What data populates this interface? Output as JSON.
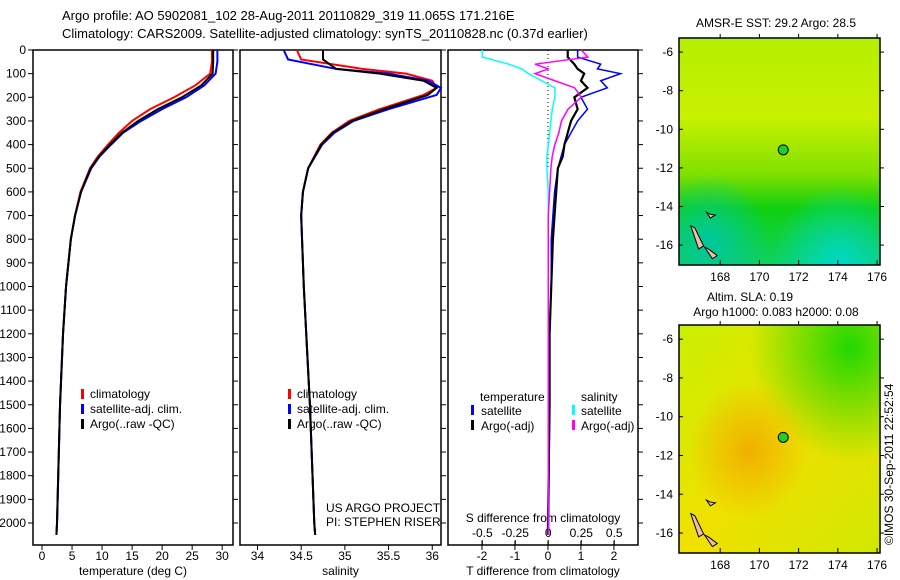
{
  "title": {
    "line1": "Argo profile: AO 5902081_102 28-Aug-2011 20110829_319 11.065S 171.216E",
    "line2": "Climatology: CARS2009. Satellite-adjusted climatology: synTS_20110828.nc (0.37d earlier)"
  },
  "credit": "©IMOS 30-Sep-2011 22:52:54",
  "project": {
    "line1": "US ARGO PROJECT",
    "line2": "PI: STEPHEN RISER"
  },
  "colors": {
    "climatology": "#ff0000",
    "satellite": "#0000ff",
    "argo": "#000000",
    "sal_satellite": "#00ffff",
    "sal_argo": "#ff00ff"
  },
  "chart_data": [
    {
      "type": "line",
      "id": "temperature",
      "xlabel": "temperature (deg C)",
      "ylabel": "",
      "xlim": [
        -1.5,
        31.8
      ],
      "ylim": [
        2093,
        0
      ],
      "xticks": [
        0,
        5,
        10,
        15,
        20,
        25,
        30
      ],
      "yticks": [
        0,
        100,
        200,
        300,
        400,
        500,
        600,
        700,
        800,
        900,
        1000,
        1100,
        1200,
        1300,
        1400,
        1500,
        1600,
        1700,
        1800,
        1900,
        2000
      ],
      "legend": [
        "climatology",
        "satellite-adj. clim.",
        "Argo(..raw -QC)"
      ],
      "depth": [
        0,
        50,
        100,
        150,
        200,
        250,
        300,
        350,
        400,
        450,
        500,
        600,
        700,
        800,
        1000,
        1200,
        1500,
        2000,
        2050
      ],
      "series": [
        {
          "name": "climatology",
          "color": "#ff0000",
          "values": [
            28.3,
            28.3,
            28.0,
            25.5,
            22.0,
            18.0,
            15.0,
            12.8,
            11.0,
            9.3,
            8.0,
            6.4,
            5.5,
            4.8,
            4.0,
            3.5,
            3.0,
            2.5,
            2.4
          ]
        },
        {
          "name": "satellite-adj. clim.",
          "color": "#0000ff",
          "values": [
            29.2,
            29.2,
            28.9,
            27.0,
            24.0,
            20.0,
            16.5,
            13.5,
            11.5,
            9.6,
            8.2,
            6.5,
            5.5,
            4.8,
            4.0,
            3.5,
            3.0,
            2.5,
            2.4
          ]
        },
        {
          "name": "Argo(..raw -QC)",
          "color": "#000000",
          "values": [
            28.5,
            28.5,
            28.4,
            26.5,
            23.3,
            19.3,
            16.0,
            13.3,
            11.3,
            9.5,
            8.1,
            6.5,
            5.5,
            4.8,
            4.0,
            3.5,
            3.0,
            2.5,
            2.4
          ]
        }
      ]
    },
    {
      "type": "line",
      "id": "salinity",
      "xlabel": "salinity",
      "xlim": [
        33.8,
        36.1
      ],
      "ylim": [
        2093,
        0
      ],
      "xticks": [
        34,
        34.5,
        35,
        35.5,
        36
      ],
      "legend": [
        "climatology",
        "satellite-adj. clim.",
        "Argo(..raw -QC)"
      ],
      "depth": [
        0,
        40,
        80,
        100,
        130,
        160,
        190,
        250,
        300,
        350,
        400,
        500,
        600,
        700,
        1000,
        1500,
        2000,
        2050
      ],
      "series": [
        {
          "name": "climatology",
          "color": "#ff0000",
          "values": [
            34.45,
            34.5,
            35.2,
            35.7,
            36.0,
            36.05,
            35.9,
            35.4,
            35.05,
            34.85,
            34.72,
            34.58,
            34.52,
            34.5,
            34.53,
            34.6,
            34.65,
            34.66
          ]
        },
        {
          "name": "satellite-adj. clim.",
          "color": "#0000ff",
          "values": [
            34.3,
            34.35,
            34.9,
            35.5,
            35.95,
            36.1,
            36.05,
            35.5,
            35.1,
            34.88,
            34.74,
            34.58,
            34.52,
            34.5,
            34.53,
            34.6,
            34.65,
            34.66
          ]
        },
        {
          "name": "Argo(..raw -QC)",
          "color": "#000000",
          "values": [
            34.75,
            34.75,
            34.9,
            35.4,
            35.9,
            36.05,
            35.95,
            35.45,
            35.08,
            34.86,
            34.73,
            34.58,
            34.52,
            34.5,
            34.53,
            34.6,
            34.65,
            34.66
          ]
        }
      ]
    },
    {
      "type": "line",
      "id": "difference",
      "xlabel": "T difference from climatology",
      "x2label": "S difference from climatology",
      "xlim": [
        -3.03,
        2.73
      ],
      "x2lim": [
        -0.76,
        0.68
      ],
      "ylim": [
        2093,
        0
      ],
      "xticks": [
        -2,
        -1,
        0,
        1,
        2
      ],
      "x2ticks": [
        -0.5,
        -0.25,
        0,
        0.25,
        0.5
      ],
      "x2ticklabels": [
        "-0.5",
        "-0.25",
        "0",
        "0.25",
        "0.5"
      ],
      "legend": {
        "temperature_title": "temperature",
        "salinity_title": "salinity",
        "t_satellite": "satellite",
        "t_argo": "Argo(-adj)",
        "s_satellite": "satellite",
        "s_argo": "Argo(-adj)"
      },
      "depth": [
        0,
        30,
        60,
        80,
        100,
        130,
        160,
        200,
        250,
        300,
        350,
        400,
        450,
        500,
        600,
        700,
        800,
        1000,
        1200,
        1500,
        2000,
        2050
      ],
      "series": [
        {
          "name": "T satellite",
          "axis": "T",
          "color": "#0000ff",
          "values": [
            0.9,
            0.9,
            1.6,
            1.5,
            2.2,
            1.6,
            1.8,
            1.0,
            1.2,
            0.9,
            0.7,
            0.5,
            0.4,
            0.3,
            0.2,
            0.15,
            0.1,
            0.1,
            0.05,
            0.05,
            0.02,
            0.02
          ]
        },
        {
          "name": "T Argo(-adj)",
          "axis": "T",
          "color": "#000000",
          "values": [
            0.6,
            0.6,
            0.8,
            0.9,
            1.1,
            1.0,
            1.2,
            0.8,
            0.9,
            0.7,
            0.6,
            0.5,
            0.45,
            0.3,
            0.25,
            0.2,
            0.15,
            0.1,
            0.05,
            0.05,
            0.0,
            0.0
          ]
        },
        {
          "name": "S satellite",
          "axis": "S",
          "color": "#00ffff",
          "values": [
            -0.5,
            -0.5,
            -0.3,
            -0.2,
            -0.15,
            -0.05,
            0.05,
            0.05,
            0.03,
            0.02,
            0.01,
            0.0,
            -0.01,
            -0.01,
            0.0,
            0.0,
            0.0,
            0.0,
            0.0,
            0.0,
            0.0,
            0.0
          ]
        },
        {
          "name": "S Argo(-adj)",
          "axis": "S",
          "color": "#ff00ff",
          "values": [
            0.25,
            0.3,
            -0.1,
            0.0,
            -0.1,
            0.05,
            0.2,
            0.25,
            0.15,
            0.1,
            0.08,
            0.05,
            0.03,
            0.02,
            0.01,
            0.0,
            0.0,
            0.0,
            0.0,
            0.0,
            0.0,
            0.0
          ]
        }
      ]
    },
    {
      "type": "heatmap",
      "id": "sst-map",
      "title": "AMSR-E SST: 29.2 Argo: 28.5",
      "xlim": [
        165.9,
        176.15
      ],
      "ylim": [
        -17.03,
        -5.27
      ],
      "xticks": [
        168,
        170,
        172,
        174,
        176
      ],
      "yticks": [
        -6,
        -8,
        -10,
        -12,
        -14,
        -16
      ],
      "marker": {
        "lon": 171.216,
        "lat": -11.065
      }
    },
    {
      "type": "heatmap",
      "id": "sla-map",
      "title": "Altim. SLA: 0.19",
      "subtitle": "Argo h1000: 0.083 h2000: 0.08",
      "xlim": [
        165.9,
        176.15
      ],
      "ylim": [
        -17.03,
        -5.27
      ],
      "xticks": [
        168,
        170,
        172,
        174,
        176
      ],
      "yticks": [
        -6,
        -8,
        -10,
        -12,
        -14,
        -16
      ],
      "marker": {
        "lon": 171.216,
        "lat": -11.065
      }
    }
  ]
}
